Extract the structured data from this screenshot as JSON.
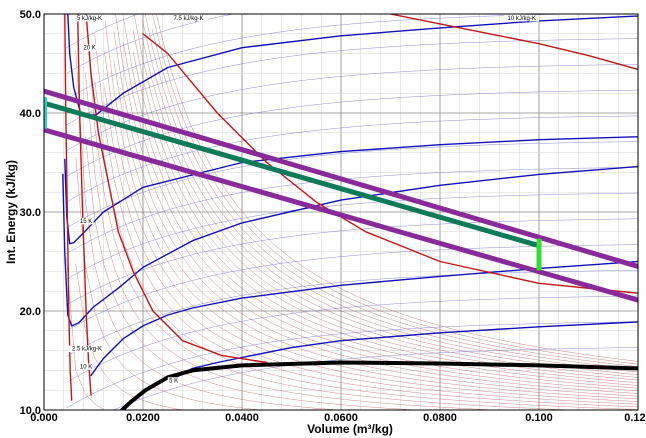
{
  "chart_data": {
    "type": "line",
    "xlabel": "Volume (m³/kg)",
    "ylabel": "Int. Energy (kJ/kg)",
    "xlim": [
      0.0,
      0.12
    ],
    "ylim": [
      10.0,
      50.0
    ],
    "x_ticks": [
      "0.000",
      "0.0200",
      "0.0400",
      "0.0600",
      "0.0800",
      "0.100",
      "0.120"
    ],
    "y_ticks": [
      "10.0",
      "20.0",
      "30.0",
      "40.0",
      "50.0"
    ],
    "grid": true,
    "colors": {
      "grid_major": "#8a8a8a",
      "grid_minor": "#d2d2d2",
      "isotherm": "#1010b8",
      "isentrope": "#c01818",
      "dense_isotherm": "#7070d0",
      "dense_isentrope": "#c06060",
      "process_a": "#882a9a",
      "process_b": "#0e7a58",
      "saturation": "#000000",
      "marker_light_green": "#33dd33",
      "marker_cyan": "#33cccc"
    },
    "annotations": [
      {
        "text": "5 kJ/kg-K",
        "x": 0.0092,
        "y": 49.4
      },
      {
        "text": "7.5 kJ/kg-K",
        "x": 0.0292,
        "y": 49.4
      },
      {
        "text": "10 kJ/kg-K",
        "x": 0.0965,
        "y": 49.4
      },
      {
        "text": "20 K",
        "x": 0.0092,
        "y": 46.4
      },
      {
        "text": "15 K",
        "x": 0.0085,
        "y": 28.9
      },
      {
        "text": "2.5 kJ/kg-K",
        "x": 0.0087,
        "y": 16.0
      },
      {
        "text": "10 K",
        "x": 0.0085,
        "y": 14.2
      },
      {
        "text": "5 K",
        "x": 0.0262,
        "y": 12.8
      }
    ],
    "series": [
      {
        "role": "isotherm",
        "points": [
          [
            0.0048,
            50.0
          ],
          [
            0.0052,
            46.0
          ],
          [
            0.006,
            42.6
          ],
          [
            0.0075,
            39.8
          ],
          [
            0.0105,
            39.8
          ],
          [
            0.016,
            42.0
          ],
          [
            0.025,
            44.6
          ],
          [
            0.04,
            46.6
          ],
          [
            0.06,
            47.8
          ],
          [
            0.08,
            48.6
          ],
          [
            0.1,
            49.3
          ],
          [
            0.12,
            49.8
          ]
        ]
      },
      {
        "role": "isotherm",
        "points": [
          [
            0.0042,
            35.3
          ],
          [
            0.0046,
            29.5
          ],
          [
            0.0052,
            26.8
          ],
          [
            0.006,
            26.9
          ],
          [
            0.008,
            27.9
          ],
          [
            0.012,
            30.0
          ],
          [
            0.02,
            32.5
          ],
          [
            0.04,
            35.0
          ],
          [
            0.06,
            36.1
          ],
          [
            0.08,
            36.8
          ],
          [
            0.1,
            37.3
          ],
          [
            0.12,
            37.6
          ]
        ]
      },
      {
        "role": "isotherm",
        "points": [
          [
            0.0038,
            33.8
          ],
          [
            0.0042,
            25.8
          ],
          [
            0.0048,
            19.6
          ],
          [
            0.0056,
            18.5
          ],
          [
            0.007,
            18.8
          ],
          [
            0.01,
            20.4
          ],
          [
            0.015,
            22.3
          ],
          [
            0.02,
            24.4
          ],
          [
            0.03,
            27.1
          ],
          [
            0.04,
            28.9
          ],
          [
            0.06,
            31.2
          ],
          [
            0.08,
            32.7
          ],
          [
            0.1,
            33.8
          ],
          [
            0.12,
            34.6
          ]
        ]
      },
      {
        "role": "isotherm",
        "points": [
          [
            0.0095,
            13.5
          ],
          [
            0.012,
            15.2
          ],
          [
            0.016,
            17.2
          ],
          [
            0.02,
            18.5
          ],
          [
            0.025,
            19.6
          ],
          [
            0.03,
            20.3
          ],
          [
            0.04,
            21.3
          ],
          [
            0.06,
            22.6
          ],
          [
            0.08,
            23.5
          ],
          [
            0.1,
            24.3
          ],
          [
            0.12,
            25.0
          ]
        ]
      },
      {
        "role": "isotherm",
        "points": [
          [
            0.026,
            13.1
          ],
          [
            0.03,
            14.2
          ],
          [
            0.035,
            14.8
          ],
          [
            0.04,
            15.3
          ],
          [
            0.05,
            16.3
          ],
          [
            0.06,
            17.0
          ],
          [
            0.08,
            17.8
          ],
          [
            0.1,
            18.4
          ],
          [
            0.12,
            18.9
          ]
        ]
      },
      {
        "role": "isentrope",
        "points": [
          [
            0.0042,
            50.0
          ],
          [
            0.0044,
            40.0
          ],
          [
            0.0047,
            30.0
          ],
          [
            0.005,
            20.0
          ],
          [
            0.0053,
            14.0
          ],
          [
            0.0056,
            11.0
          ]
        ]
      },
      {
        "role": "isentrope",
        "points": [
          [
            0.0068,
            50.0
          ],
          [
            0.0072,
            40.0
          ],
          [
            0.0078,
            30.0
          ],
          [
            0.0085,
            20.0
          ],
          [
            0.009,
            15.0
          ],
          [
            0.0095,
            11.5
          ]
        ]
      },
      {
        "role": "isentrope",
        "points": [
          [
            0.0085,
            50.0
          ],
          [
            0.0095,
            44.0
          ],
          [
            0.011,
            38.0
          ],
          [
            0.013,
            33.0
          ],
          [
            0.015,
            28.0
          ],
          [
            0.018,
            24.0
          ],
          [
            0.022,
            20.0
          ],
          [
            0.028,
            17.0
          ],
          [
            0.036,
            15.5
          ],
          [
            0.045,
            14.8
          ]
        ]
      },
      {
        "role": "isentrope",
        "points": [
          [
            0.02,
            48.0
          ],
          [
            0.025,
            46.0
          ],
          [
            0.03,
            43.0
          ],
          [
            0.035,
            40.0
          ],
          [
            0.045,
            35.0
          ],
          [
            0.055,
            31.0
          ],
          [
            0.065,
            28.0
          ],
          [
            0.08,
            25.0
          ],
          [
            0.1,
            22.8
          ],
          [
            0.12,
            21.8
          ]
        ]
      },
      {
        "role": "isentrope",
        "points": [
          [
            0.07,
            50.0
          ],
          [
            0.08,
            49.0
          ],
          [
            0.09,
            48.0
          ],
          [
            0.1,
            47.0
          ],
          [
            0.11,
            45.8
          ],
          [
            0.12,
            44.4
          ]
        ]
      },
      {
        "role": "saturation",
        "points": [
          [
            0.0158,
            10.0
          ],
          [
            0.0175,
            10.8
          ],
          [
            0.0205,
            12.0
          ],
          [
            0.025,
            13.3
          ],
          [
            0.03,
            14.0
          ],
          [
            0.04,
            14.5
          ],
          [
            0.06,
            14.8
          ],
          [
            0.08,
            14.7
          ],
          [
            0.1,
            14.5
          ],
          [
            0.12,
            14.2
          ]
        ]
      },
      {
        "role": "process_a",
        "points": [
          [
            0.0,
            42.2
          ],
          [
            0.12,
            24.5
          ]
        ]
      },
      {
        "role": "process_a",
        "points": [
          [
            0.0,
            38.3
          ],
          [
            0.12,
            21.1
          ]
        ]
      },
      {
        "role": "process_b",
        "points": [
          [
            0.0,
            41.0
          ],
          [
            0.1,
            26.6
          ]
        ]
      },
      {
        "role": "marker_light_green",
        "points": [
          [
            0.1,
            27.3
          ],
          [
            0.1,
            24.1
          ]
        ]
      },
      {
        "role": "marker_cyan",
        "points": [
          [
            0.0003,
            41.6
          ],
          [
            0.0003,
            38.4
          ]
        ]
      }
    ]
  }
}
